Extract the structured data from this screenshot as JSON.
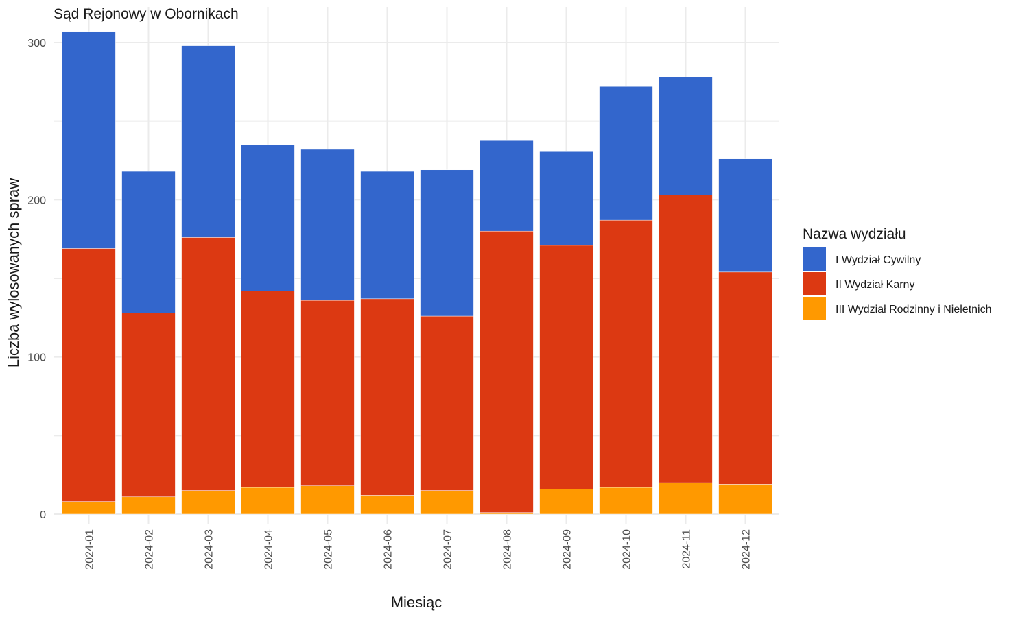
{
  "chart_data": {
    "type": "bar",
    "stacked": true,
    "title": "Sąd Rejonowy w Obornikach",
    "xlabel": "Miesiąc",
    "ylabel": "Liczba wylosowanych spraw",
    "ylim": [
      0,
      310
    ],
    "yticks": [
      0,
      100,
      200,
      300
    ],
    "grid": true,
    "legend_title": "Nazwa wydziału",
    "legend_position": "right",
    "categories": [
      "2024-01",
      "2024-02",
      "2024-03",
      "2024-04",
      "2024-05",
      "2024-06",
      "2024-07",
      "2024-08",
      "2024-09",
      "2024-10",
      "2024-11",
      "2024-12"
    ],
    "series": [
      {
        "name": "I Wydział Cywilny",
        "color": "#3366cc",
        "values": [
          138,
          90,
          122,
          93,
          96,
          81,
          93,
          58,
          60,
          85,
          75,
          72
        ]
      },
      {
        "name": "II Wydział Karny",
        "color": "#dc3912",
        "values": [
          161,
          117,
          161,
          125,
          118,
          125,
          111,
          179,
          155,
          170,
          183,
          135
        ]
      },
      {
        "name": "III Wydział Rodzinny i Nieletnich",
        "color": "#ff9900",
        "values": [
          8,
          11,
          15,
          17,
          18,
          12,
          15,
          1,
          16,
          17,
          20,
          19
        ]
      }
    ]
  }
}
